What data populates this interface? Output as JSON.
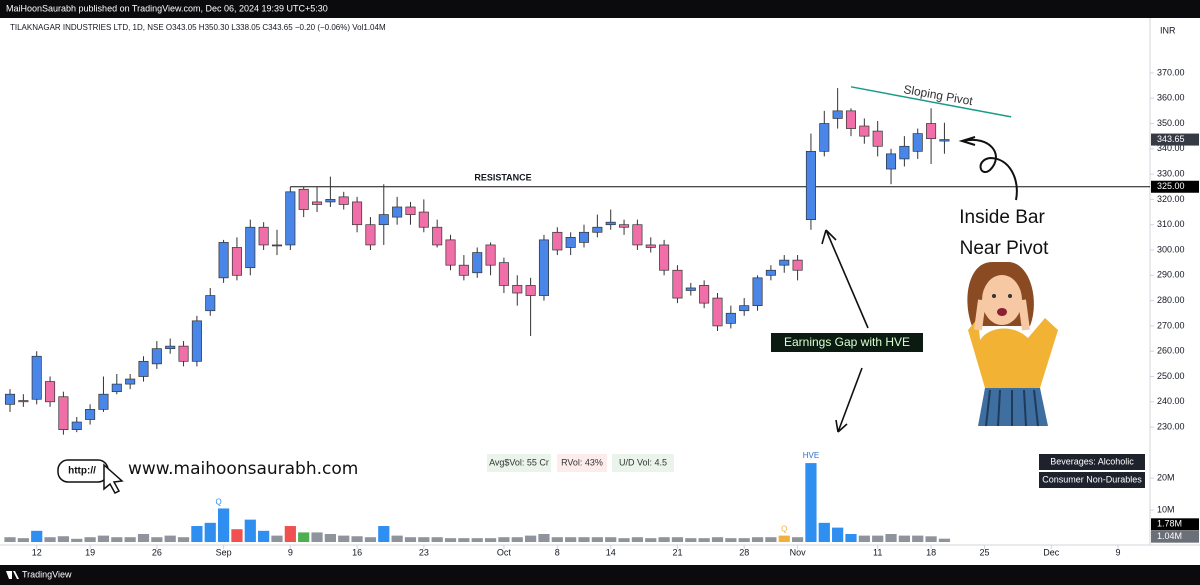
{
  "header": {
    "publisher": "MaiHoonSaurabh published on TradingView.com, Dec 06, 2024 19:39 UTC+5:30",
    "brand": "TradingView"
  },
  "chart_data": {
    "type": "candlestick",
    "title": "TILAKNAGAR INDUSTRIES LTD, 1D, NSE  O343.05  H350.30  L338.05  C343.65  −0.20 (−0.06%)  Vol1.04M",
    "currency": "INR",
    "open": [
      239,
      240.5,
      241,
      248,
      242,
      229,
      233,
      237,
      244,
      247,
      250,
      255,
      261,
      262,
      256,
      276,
      289,
      301,
      293,
      309,
      302,
      302,
      324,
      319,
      319,
      321,
      319,
      310,
      310,
      313,
      317,
      315,
      309,
      304,
      294,
      291,
      302,
      295,
      286,
      286,
      282,
      307,
      301,
      303,
      307,
      310,
      310,
      310,
      302,
      302,
      292,
      284,
      286,
      281,
      271,
      276,
      278,
      290,
      294,
      296,
      312,
      339,
      352,
      355,
      349,
      347,
      332,
      336,
      339,
      350,
      343.05
    ],
    "high": [
      245,
      243,
      260,
      250,
      244,
      234,
      239,
      250,
      251,
      251,
      258,
      264,
      265,
      264,
      274,
      285,
      304,
      305,
      312,
      311,
      308,
      325,
      325,
      325,
      329,
      323,
      321,
      313,
      326,
      321,
      319,
      320,
      312,
      306,
      298,
      301,
      303,
      297,
      290,
      289,
      306,
      309,
      307,
      310,
      314,
      316,
      312,
      312,
      305,
      304,
      294,
      287,
      288,
      283,
      278,
      281,
      290,
      294,
      298,
      298,
      346,
      355,
      364,
      356,
      352,
      351,
      340,
      345,
      348,
      356,
      350.3
    ],
    "low": [
      236,
      238,
      239,
      238,
      227,
      228,
      231,
      236,
      243,
      245,
      248,
      253,
      259,
      254,
      254,
      274,
      287,
      288,
      290,
      300,
      298,
      300,
      313,
      315,
      317,
      316,
      307,
      300,
      302,
      310,
      310,
      307,
      301,
      292,
      288,
      289,
      290,
      283,
      278,
      266,
      280,
      298,
      298,
      301,
      305,
      308,
      306,
      300,
      299,
      290,
      279,
      282,
      277,
      268,
      269,
      274,
      276,
      288,
      291,
      288,
      308,
      337,
      348,
      345,
      342,
      337,
      326,
      333,
      336,
      334,
      338.05
    ],
    "close": [
      243,
      240,
      258,
      240,
      229,
      232,
      237,
      243,
      247,
      249,
      256,
      261,
      262,
      256,
      272,
      282,
      303,
      290,
      309,
      302,
      302,
      323,
      316,
      318,
      320,
      318,
      310,
      302,
      314,
      317,
      314,
      309,
      302,
      294,
      290,
      299,
      294,
      286,
      283,
      282,
      304,
      300,
      305,
      307,
      309,
      311,
      309,
      302,
      301,
      292,
      281,
      285,
      279,
      270,
      275,
      278,
      289,
      292,
      296,
      292,
      339,
      350,
      355,
      348,
      345,
      341,
      338,
      341,
      346,
      344,
      343.65
    ],
    "volume": [
      1.5,
      1.2,
      3.5,
      1.5,
      1.8,
      1.0,
      1.5,
      2,
      1.5,
      1.5,
      2.5,
      1.5,
      2,
      1.5,
      5,
      6,
      10.5,
      4,
      7,
      3.5,
      2,
      5,
      3,
      3,
      2.5,
      2,
      1.8,
      1.5,
      5,
      2,
      1.5,
      1.5,
      1.5,
      1.2,
      1.2,
      1.2,
      1.2,
      1.5,
      1.5,
      2,
      2.5,
      1.5,
      1.5,
      1.5,
      1.5,
      1.5,
      1.2,
      1.5,
      1.2,
      1.5,
      1.5,
      1.2,
      1.2,
      1.5,
      1.2,
      1.2,
      1.5,
      1.5,
      2,
      1.5,
      24.7,
      6,
      4.5,
      2.5,
      2,
      2,
      2.5,
      2,
      2,
      1.78,
      1.04
    ],
    "volume_colors": [
      "#8f939c",
      "#8f939c",
      "#2f8ff0",
      "#8f939c",
      "#8f939c",
      "#8f939c",
      "#8f939c",
      "#8f939c",
      "#8f939c",
      "#8f939c",
      "#8f939c",
      "#8f939c",
      "#8f939c",
      "#8f939c",
      "#2f8ff0",
      "#2f8ff0",
      "#2f8ff0",
      "#f05050",
      "#2f8ff0",
      "#2f8ff0",
      "#8f939c",
      "#f05050",
      "#4caf50",
      "#8f939c",
      "#8f939c",
      "#8f939c",
      "#8f939c",
      "#8f939c",
      "#2f8ff0",
      "#8f939c",
      "#8f939c",
      "#8f939c",
      "#8f939c",
      "#8f939c",
      "#8f939c",
      "#8f939c",
      "#8f939c",
      "#8f939c",
      "#8f939c",
      "#8f939c",
      "#8f939c",
      "#8f939c",
      "#8f939c",
      "#8f939c",
      "#8f939c",
      "#8f939c",
      "#8f939c",
      "#8f939c",
      "#8f939c",
      "#8f939c",
      "#8f939c",
      "#8f939c",
      "#8f939c",
      "#8f939c",
      "#8f939c",
      "#8f939c",
      "#8f939c",
      "#8f939c",
      "#f0b040",
      "#8f939c",
      "#2f8ff0",
      "#2f8ff0",
      "#2f8ff0",
      "#2f8ff0",
      "#8f939c",
      "#8f939c",
      "#8f939c",
      "#8f939c",
      "#8f939c",
      "#8f939c",
      "#8f939c"
    ],
    "up_color": "#4a86e8",
    "down_color": "#f06fa8",
    "xlim": [
      -0.75,
      85.4
    ],
    "xticks": [
      {
        "value": 2,
        "label": "12"
      },
      {
        "value": 6,
        "label": "19"
      },
      {
        "value": 11,
        "label": "26"
      },
      {
        "value": 16,
        "label": "Sep"
      },
      {
        "value": 21,
        "label": "9"
      },
      {
        "value": 26,
        "label": "16"
      },
      {
        "value": 31,
        "label": "23"
      },
      {
        "value": 37,
        "label": "Oct"
      },
      {
        "value": 41,
        "label": "8"
      },
      {
        "value": 45,
        "label": "14"
      },
      {
        "value": 50,
        "label": "21"
      },
      {
        "value": 55,
        "label": "28"
      },
      {
        "value": 59,
        "label": "Nov"
      },
      {
        "value": 65,
        "label": "11"
      },
      {
        "value": 69,
        "label": "18"
      },
      {
        "value": 73,
        "label": "25"
      },
      {
        "value": 78,
        "label": "Dec"
      },
      {
        "value": 83,
        "label": "9"
      }
    ],
    "ylim": [
      183.4,
      391.7
    ],
    "yticks": [
      {
        "value": 230,
        "label": "230.00"
      },
      {
        "value": 240,
        "label": "240.00"
      },
      {
        "value": 250,
        "label": "250.00"
      },
      {
        "value": 260,
        "label": "260.00"
      },
      {
        "value": 270,
        "label": "270.00"
      },
      {
        "value": 280,
        "label": "280.00"
      },
      {
        "value": 290,
        "label": "290.00"
      },
      {
        "value": 300,
        "label": "300.00"
      },
      {
        "value": 310,
        "label": "310.00"
      },
      {
        "value": 320,
        "label": "320.00"
      },
      {
        "value": 330,
        "label": "330.00"
      },
      {
        "value": 340,
        "label": "340.00"
      },
      {
        "value": 350,
        "label": "350.00"
      },
      {
        "value": 360,
        "label": "360.00"
      },
      {
        "value": 370,
        "label": "370.00"
      }
    ],
    "volume_ylim": [
      0,
      164
    ],
    "volume_ticks": [
      {
        "value": 10,
        "label": "10M"
      },
      {
        "value": 20,
        "label": "20M"
      }
    ],
    "price_labels": [
      {
        "value": 343.65,
        "label": "343.65"
      },
      {
        "value": 325,
        "label": "325.00"
      }
    ],
    "volume_labels": [
      {
        "value": 1.78,
        "label": "1.78M"
      },
      {
        "value": 1.04,
        "label": "1.04M"
      }
    ],
    "sloping_pivot": {
      "from": [
        63,
        364.5
      ],
      "to": [
        75,
        352.6
      ]
    },
    "annotations": {
      "resistance": "RESISTANCE",
      "sloping": "Sloping Pivot",
      "inside1": "Inside Bar",
      "inside2": "Near Pivot",
      "gap": "Earnings Gap with HVE",
      "hve": "HVE",
      "q1": "Q",
      "q2": "Q",
      "avg": "Avg$Vol: 55 Cr",
      "rvol": "RVol: 43%",
      "ud": "U/D Vol: 4.5",
      "sector": "Beverages: Alcoholic",
      "industry": "Consumer Non-Durables",
      "http": "http://",
      "site": "www.maihoonsaurabh.com"
    }
  }
}
